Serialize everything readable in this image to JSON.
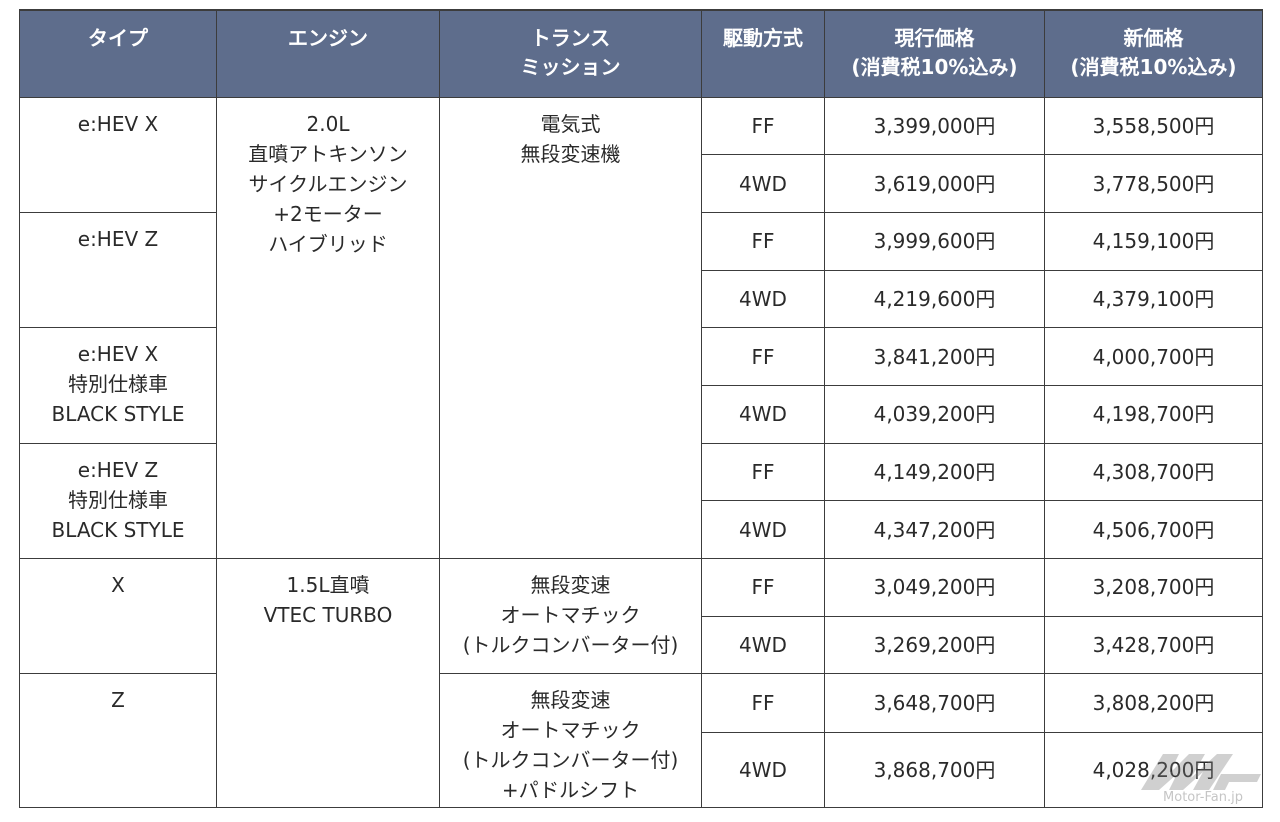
{
  "header": {
    "type": "タイプ",
    "engine": "エンジン",
    "transmission": "トランス\nミッション",
    "drive": "駆動方式",
    "current_price": "現行価格\n(消費税10%込み)",
    "new_price": "新価格\n(消費税10%込み)"
  },
  "types": [
    "e:HEV X",
    "e:HEV Z",
    "e:HEV X\n特別仕様車\nBLACK STYLE",
    "e:HEV Z\n特別仕様車\nBLACK STYLE",
    "X",
    "Z"
  ],
  "engines": [
    "2.0L\n直噴アトキンソン\nサイクルエンジン\n+2モーター\nハイブリッド",
    "1.5L直噴\nVTEC TURBO"
  ],
  "transmissions": [
    "電気式\n無段変速機",
    "無段変速\nオートマチック\n(トルクコンバーター付)",
    "無段変速\nオートマチック\n(トルクコンバーター付)\n+パドルシフト"
  ],
  "rows": [
    {
      "drive": "FF",
      "current": "3,399,000円",
      "new": "3,558,500円"
    },
    {
      "drive": "4WD",
      "current": "3,619,000円",
      "new": "3,778,500円"
    },
    {
      "drive": "FF",
      "current": "3,999,600円",
      "new": "4,159,100円"
    },
    {
      "drive": "4WD",
      "current": "4,219,600円",
      "new": "4,379,100円"
    },
    {
      "drive": "FF",
      "current": "3,841,200円",
      "new": "4,000,700円"
    },
    {
      "drive": "4WD",
      "current": "4,039,200円",
      "new": "4,198,700円"
    },
    {
      "drive": "FF",
      "current": "4,149,200円",
      "new": "4,308,700円"
    },
    {
      "drive": "4WD",
      "current": "4,347,200円",
      "new": "4,506,700円"
    },
    {
      "drive": "FF",
      "current": "3,049,200円",
      "new": "3,208,700円"
    },
    {
      "drive": "4WD",
      "current": "3,269,200円",
      "new": "3,428,700円"
    },
    {
      "drive": "FF",
      "current": "3,648,700円",
      "new": "3,808,200円"
    },
    {
      "drive": "4WD",
      "current": "3,868,700円",
      "new": "4,028,200円"
    }
  ],
  "watermark": "Motor-Fan.jp",
  "colors": {
    "header_bg": "#5e6d8c",
    "header_text": "#ffffff",
    "border": "#3c3c3c"
  }
}
